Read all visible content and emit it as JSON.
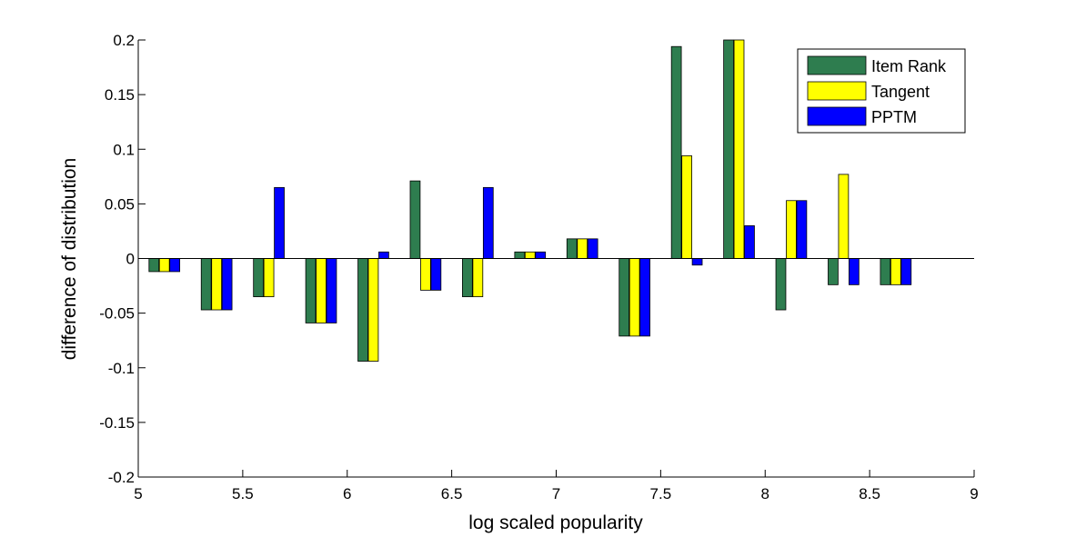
{
  "chart_data": {
    "type": "bar",
    "title": "",
    "xlabel": "log scaled popularity",
    "ylabel": "difference of distribution",
    "xlim": [
      5,
      9
    ],
    "ylim": [
      -0.2,
      0.2
    ],
    "xticks": [
      "5",
      "5.5",
      "6",
      "6.5",
      "7",
      "7.5",
      "8",
      "8.5",
      "9"
    ],
    "yticks": [
      "-0.2",
      "-0.15",
      "-0.1",
      "-0.05",
      "0",
      "0.05",
      "0.1",
      "0.15",
      "0.2"
    ],
    "grid": false,
    "legend_position": "top-right",
    "x": [
      5.125,
      5.375,
      5.625,
      5.875,
      6.125,
      6.375,
      6.625,
      6.875,
      7.125,
      7.375,
      7.625,
      7.875,
      8.125,
      8.375,
      8.625
    ],
    "series": [
      {
        "name": "Item Rank",
        "color": "#2e7d4f",
        "values": [
          -0.012,
          -0.047,
          -0.035,
          -0.059,
          -0.094,
          0.071,
          -0.035,
          0.006,
          0.018,
          -0.071,
          0.194,
          0.2,
          -0.047,
          -0.024,
          -0.024
        ]
      },
      {
        "name": "Tangent",
        "color": "#ffff00",
        "values": [
          -0.012,
          -0.047,
          -0.035,
          -0.059,
          -0.094,
          -0.029,
          -0.035,
          0.006,
          0.018,
          -0.071,
          0.094,
          0.2,
          0.053,
          0.077,
          -0.024
        ]
      },
      {
        "name": "PPTM",
        "color": "#0000ff",
        "values": [
          -0.012,
          -0.047,
          0.065,
          -0.059,
          0.006,
          -0.029,
          0.065,
          0.006,
          0.018,
          -0.071,
          -0.006,
          0.03,
          0.053,
          -0.024,
          -0.024
        ]
      }
    ]
  }
}
